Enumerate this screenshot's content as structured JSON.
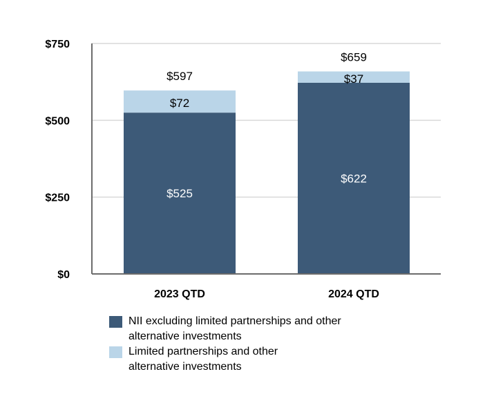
{
  "chart_data": {
    "type": "bar",
    "stacked": true,
    "title": "",
    "xlabel": "",
    "ylabel": "",
    "categories": [
      "2023 QTD",
      "2024 QTD"
    ],
    "series": [
      {
        "name": "NII excluding limited partnerships and other alternative investments",
        "values": [
          525,
          622
        ],
        "labels": [
          "$525",
          "$622"
        ],
        "color": "#3d5a78"
      },
      {
        "name": "Limited partnerships and other alternative investments",
        "values": [
          72,
          37
        ],
        "labels": [
          "$72",
          "$37"
        ],
        "color": "#bad5e8"
      }
    ],
    "totals": [
      597,
      659
    ],
    "total_labels": [
      "$597",
      "$659"
    ],
    "ylim": [
      0,
      750
    ],
    "yticks": [
      0,
      250,
      500,
      750
    ],
    "ytick_labels": [
      "$0",
      "$250",
      "$500",
      "$750"
    ],
    "grid": true,
    "legend_position": "bottom"
  },
  "legend": {
    "item1": {
      "line1": "NII excluding limited partnerships and other",
      "line2": "alternative investments"
    },
    "item2": {
      "line1": "Limited partnerships and other",
      "line2": "alternative investments"
    }
  }
}
